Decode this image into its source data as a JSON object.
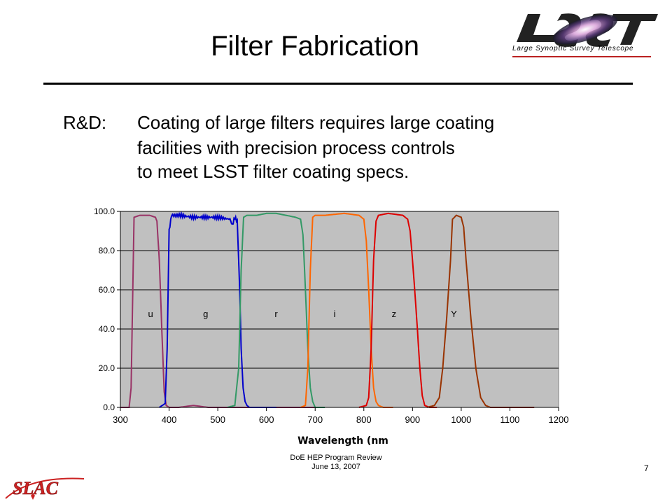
{
  "slide": {
    "title": "Filter Fabrication",
    "rd_label": "R&D:",
    "rd_lines": [
      "Coating of large filters requires large coating",
      "facilities with precision process controls",
      "to meet LSST filter coating specs."
    ],
    "logo_text": "LSST",
    "logo_subtitle": "Large Synoptic Survey Telescope",
    "footer_line1": "DoE HEP Program Review",
    "footer_line2": "June 13, 2007",
    "page_number": "7",
    "slac_logo_text": "SLAC"
  },
  "chart_data": {
    "type": "line",
    "xlabel": "Wavelength (nm",
    "ylabel": "",
    "xlim": [
      300,
      1200
    ],
    "ylim": [
      0,
      100
    ],
    "xticks": [
      "300",
      "400",
      "500",
      "600",
      "700",
      "800",
      "900",
      "1000",
      "1100",
      "1200"
    ],
    "yticks": [
      "0.0",
      "20.0",
      "40.0",
      "60.0",
      "80.0",
      "100.0"
    ],
    "grid": "horizontal",
    "background": "#c0c0c0",
    "series": [
      {
        "name": "u",
        "color": "#993366",
        "label_x": 362,
        "label_y": 46,
        "x": [
          300,
          318,
          322,
          328,
          340,
          360,
          372,
          375,
          380,
          385,
          390,
          394,
          400,
          420,
          450,
          480,
          500,
          530,
          560,
          600,
          650,
          700
        ],
        "y": [
          0,
          0,
          10,
          97,
          98,
          98,
          97,
          95,
          75,
          40,
          8,
          1,
          0,
          0,
          1,
          0,
          0,
          0,
          0,
          0,
          0,
          0
        ]
      },
      {
        "name": "g",
        "color": "#0000cc",
        "label_x": 475,
        "label_y": 46,
        "x": [
          380,
          392,
          396,
          400,
          405,
          420,
          450,
          500,
          525,
          530,
          535,
          540,
          545,
          548,
          552,
          556,
          560,
          565,
          575,
          590,
          620
        ],
        "y": [
          0,
          2,
          30,
          90,
          98,
          98,
          97,
          97,
          96,
          93,
          97,
          95,
          60,
          30,
          10,
          3,
          1,
          0,
          0,
          0,
          0
        ],
        "noise": 0.9
      },
      {
        "name": "r",
        "color": "#339966",
        "label_x": 620,
        "label_y": 46,
        "x": [
          520,
          535,
          543,
          548,
          553,
          560,
          580,
          600,
          620,
          640,
          660,
          670,
          675,
          680,
          685,
          690,
          695,
          700,
          710,
          720
        ],
        "y": [
          0,
          1,
          20,
          70,
          97,
          98,
          98,
          99,
          99,
          98,
          97,
          96,
          88,
          60,
          30,
          10,
          3,
          0,
          0,
          0
        ]
      },
      {
        "name": "i",
        "color": "#ff6600",
        "label_x": 740,
        "label_y": 46,
        "x": [
          670,
          680,
          685,
          690,
          695,
          700,
          720,
          760,
          790,
          800,
          805,
          810,
          815,
          820,
          825,
          830,
          840,
          860
        ],
        "y": [
          0,
          1,
          20,
          70,
          97,
          98,
          98,
          99,
          98,
          96,
          85,
          60,
          30,
          10,
          3,
          1,
          0,
          0
        ]
      },
      {
        "name": "z",
        "color": "#dd0000",
        "label_x": 862,
        "label_y": 46,
        "x": [
          790,
          805,
          810,
          815,
          820,
          825,
          830,
          850,
          880,
          890,
          895,
          900,
          905,
          910,
          915,
          920,
          925,
          935,
          950
        ],
        "y": [
          0,
          1,
          5,
          30,
          75,
          95,
          98,
          99,
          98,
          96,
          90,
          75,
          58,
          40,
          20,
          6,
          1,
          0,
          0
        ]
      },
      {
        "name": "Y",
        "color": "#993300",
        "label_x": 985,
        "label_y": 46,
        "x": [
          930,
          945,
          955,
          962,
          970,
          978,
          982,
          990,
          1000,
          1005,
          1010,
          1015,
          1020,
          1030,
          1040,
          1050,
          1060,
          1080,
          1100,
          1150
        ],
        "y": [
          0,
          1,
          5,
          20,
          45,
          75,
          96,
          98,
          97,
          92,
          75,
          60,
          45,
          20,
          5,
          1,
          0,
          0,
          0,
          0
        ]
      }
    ]
  }
}
